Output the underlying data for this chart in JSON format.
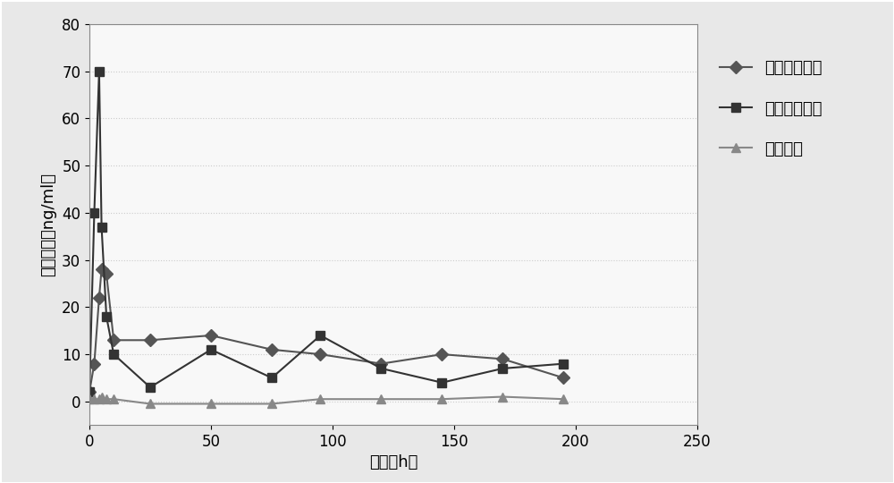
{
  "series1_label": "自制纳米粒组",
  "series2_label": "黄体酮注射液",
  "series3_label": "空白基线",
  "series1_x": [
    0,
    2,
    4,
    5,
    7,
    10,
    25,
    50,
    75,
    95,
    120,
    145,
    170,
    195
  ],
  "series1_y": [
    2,
    8,
    22,
    28,
    27,
    13,
    13,
    14,
    11,
    10,
    8,
    10,
    9,
    5
  ],
  "series2_x": [
    0,
    2,
    4,
    5,
    7,
    10,
    25,
    50,
    75,
    95,
    120,
    145,
    170,
    195
  ],
  "series2_y": [
    2,
    40,
    70,
    37,
    18,
    10,
    3,
    11,
    5,
    14,
    7,
    4,
    7,
    8
  ],
  "series3_x": [
    0,
    2,
    4,
    5,
    7,
    10,
    25,
    50,
    75,
    95,
    120,
    145,
    170,
    195
  ],
  "series3_y": [
    0.5,
    0.5,
    0.5,
    1,
    0.5,
    0.5,
    -0.5,
    -0.5,
    -0.5,
    0.5,
    0.5,
    0.5,
    1,
    0.5
  ],
  "xlabel": "时间（h）",
  "ylabel": "血药浓度（ng/ml）",
  "xlim": [
    0,
    250
  ],
  "ylim": [
    -5,
    80
  ],
  "yticks": [
    0,
    10,
    20,
    30,
    40,
    50,
    60,
    70,
    80
  ],
  "xticks": [
    0,
    50,
    100,
    150,
    200,
    250
  ],
  "color1": "#555555",
  "color2": "#333333",
  "color3": "#888888",
  "marker1": "D",
  "marker2": "s",
  "marker3": "^",
  "linewidth": 1.5,
  "markersize": 7,
  "figure_facecolor": "#e8e8e8",
  "axes_facecolor": "#f8f8f8",
  "grid_color": "#cccccc",
  "label_fontsize": 13,
  "tick_fontsize": 12,
  "legend_fontsize": 13
}
